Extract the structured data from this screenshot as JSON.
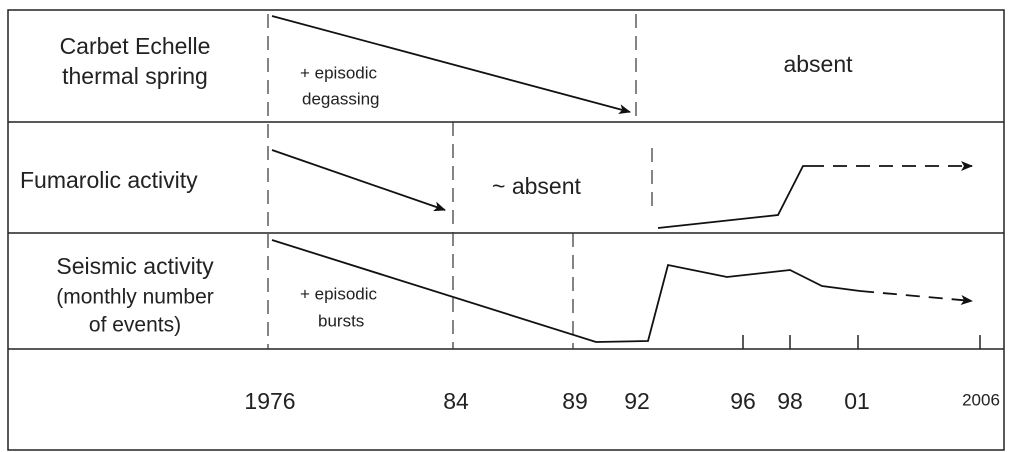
{
  "rows": [
    {
      "label": [
        "Carbet Echelle",
        "thermal spring"
      ],
      "annotations": [
        "+ episodic",
        "degassing",
        "absent"
      ]
    },
    {
      "label": [
        "Fumarolic activity"
      ],
      "annotations": [
        "~ absent"
      ]
    },
    {
      "label": [
        "Seismic activity",
        "(monthly number",
        "of events)"
      ],
      "annotations": [
        "+ episodic",
        "bursts"
      ]
    }
  ],
  "years": [
    "1976",
    "84",
    "89",
    "92",
    "96",
    "98",
    "01",
    "2006"
  ]
}
